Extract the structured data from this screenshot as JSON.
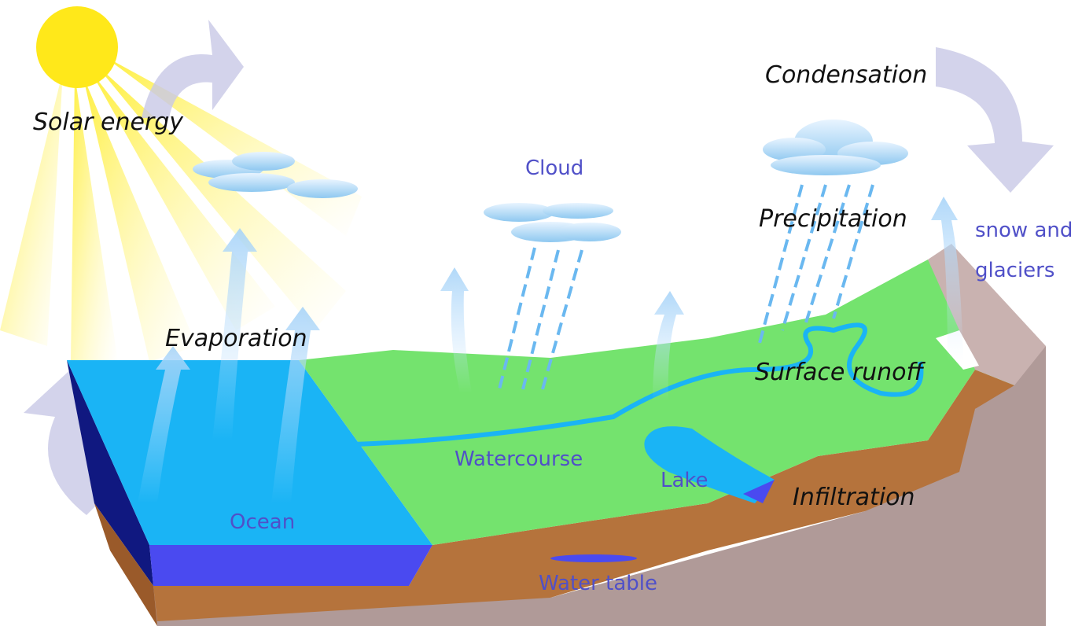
{
  "labels": {
    "solar_energy": "Solar energy",
    "evaporation": "Evaporation",
    "cloud": "Cloud",
    "condensation": "Condensation",
    "precipitation": "Precipitation",
    "snow_and_glaciers": [
      "snow and",
      "glaciers"
    ],
    "surface_runoff": "Surface runoff",
    "watercourse": "Watercourse",
    "lake": "Lake",
    "infiltration": "Infiltration",
    "ocean": "Ocean",
    "water_table": "Water table"
  }
}
